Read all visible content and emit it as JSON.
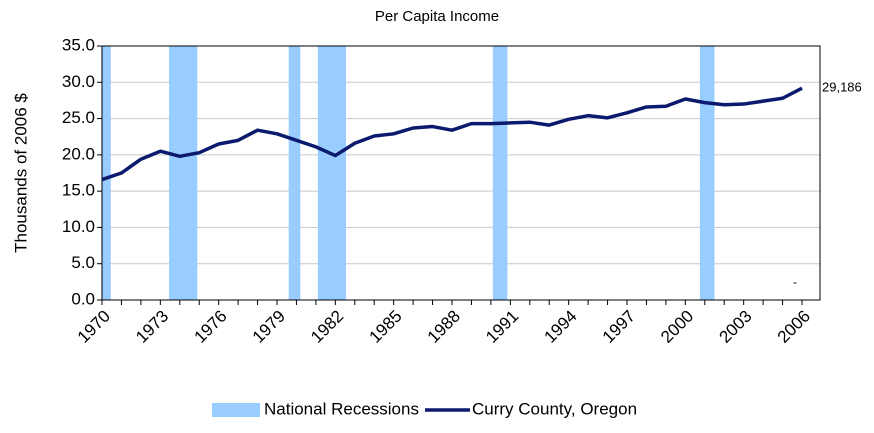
{
  "chart_data": {
    "type": "line",
    "title": "Per Capita Income",
    "y_label": "Thousands of 2006 $",
    "x": [
      1970,
      1971,
      1972,
      1973,
      1974,
      1975,
      1976,
      1977,
      1978,
      1979,
      1980,
      1981,
      1982,
      1983,
      1984,
      1985,
      1986,
      1987,
      1988,
      1989,
      1990,
      1991,
      1992,
      1993,
      1994,
      1995,
      1996,
      1997,
      1998,
      1999,
      2000,
      2001,
      2002,
      2003,
      2004,
      2005,
      2006
    ],
    "xlim": [
      1970,
      2006
    ],
    "xticks": [
      1970,
      1973,
      1976,
      1979,
      1982,
      1985,
      1988,
      1991,
      1994,
      1997,
      2000,
      2003,
      2006
    ],
    "ylim": [
      0,
      35
    ],
    "yticks": [
      {
        "value": 0,
        "label": "0.0"
      },
      {
        "value": 5,
        "label": "5.0"
      },
      {
        "value": 10,
        "label": "10.0"
      },
      {
        "value": 15,
        "label": "15.0"
      },
      {
        "value": 20,
        "label": "20.0"
      },
      {
        "value": 25,
        "label": "25.0"
      },
      {
        "value": 30,
        "label": "30.0"
      },
      {
        "value": 35,
        "label": "35.0"
      }
    ],
    "grid": true,
    "recessions": {
      "name": "National Recessions",
      "color": "#99ccff",
      "ranges": [
        [
          1970,
          1970.45
        ],
        [
          1973.45,
          1974.9
        ],
        [
          1979.6,
          1980.2
        ],
        [
          1981.1,
          1982.55
        ],
        [
          1990.1,
          1990.85
        ],
        [
          2000.75,
          2001.5
        ]
      ]
    },
    "series": [
      {
        "name": "Curry County, Oregon",
        "color": "#0c1a6e",
        "values": [
          16.6,
          17.5,
          19.4,
          20.5,
          19.8,
          20.3,
          21.5,
          22.0,
          23.4,
          22.9,
          22.0,
          21.1,
          19.9,
          21.6,
          22.6,
          22.9,
          23.7,
          23.9,
          23.4,
          24.3,
          24.3,
          24.4,
          24.5,
          24.1,
          24.9,
          25.4,
          25.1,
          25.8,
          26.6,
          26.7,
          27.7,
          27.2,
          26.9,
          27.0,
          27.4,
          27.8,
          29.186
        ],
        "value_labels": [
          null,
          null,
          null,
          null,
          null,
          null,
          null,
          null,
          null,
          null,
          null,
          null,
          null,
          null,
          null,
          null,
          null,
          null,
          null,
          null,
          null,
          null,
          null,
          null,
          null,
          null,
          null,
          null,
          null,
          null,
          null,
          null,
          null,
          null,
          null,
          null,
          "29,186"
        ]
      }
    ],
    "annotation": "-",
    "legend": "bottom"
  }
}
